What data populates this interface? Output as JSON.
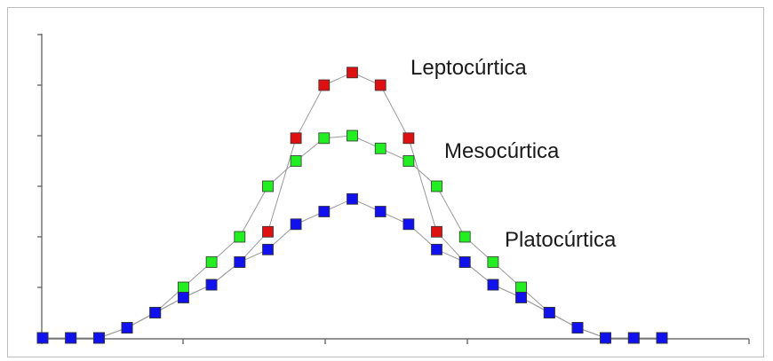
{
  "chart_data": {
    "type": "scatter",
    "title": "",
    "xlabel": "",
    "ylabel": "",
    "xlim": [
      0,
      23
    ],
    "ylim": [
      0,
      6
    ],
    "x_ticks": [
      0,
      5,
      10,
      15,
      20
    ],
    "y_ticks": [
      0,
      1,
      2,
      3,
      4,
      5,
      6
    ],
    "grid": false,
    "legend": "none",
    "series": [
      {
        "name": "Leptocúrtica",
        "color": "#dd1111",
        "x": [
          0,
          1,
          2,
          3,
          4,
          5,
          6,
          7,
          8,
          9,
          10,
          11,
          12,
          13,
          14,
          15,
          16,
          17,
          18,
          19,
          20,
          21,
          22
        ],
        "y": [
          0,
          0,
          0,
          0.2,
          0.5,
          0.8,
          1.05,
          1.5,
          2.1,
          3.95,
          5.0,
          5.25,
          5.0,
          3.95,
          2.1,
          1.5,
          1.05,
          0.8,
          0.5,
          0.2,
          0,
          0,
          0
        ]
      },
      {
        "name": "Mesocúrtica",
        "color": "#22ee22",
        "x": [
          0,
          1,
          2,
          3,
          4,
          5,
          6,
          7,
          8,
          9,
          10,
          11,
          12,
          13,
          14,
          15,
          16,
          17,
          18,
          19,
          20,
          21,
          22
        ],
        "y": [
          0,
          0,
          0,
          0.2,
          0.5,
          1.0,
          1.5,
          2.0,
          3.0,
          3.5,
          3.95,
          4.0,
          3.75,
          3.5,
          3.0,
          2.0,
          1.5,
          1.0,
          0.5,
          0.2,
          0,
          0,
          0
        ]
      },
      {
        "name": "Platocúrtica",
        "color": "#1111ee",
        "x": [
          0,
          1,
          2,
          3,
          4,
          5,
          6,
          7,
          8,
          9,
          10,
          11,
          12,
          13,
          14,
          15,
          16,
          17,
          18,
          19,
          20,
          21,
          22
        ],
        "y": [
          0,
          0,
          0,
          0.2,
          0.5,
          0.8,
          1.05,
          1.5,
          1.75,
          2.25,
          2.5,
          2.75,
          2.5,
          2.25,
          1.75,
          1.5,
          1.05,
          0.8,
          0.5,
          0.2,
          0,
          0,
          0
        ]
      }
    ],
    "annotations": [
      "Leptocúrtica",
      "Mesocúrtica",
      "Platocúrtica"
    ]
  }
}
